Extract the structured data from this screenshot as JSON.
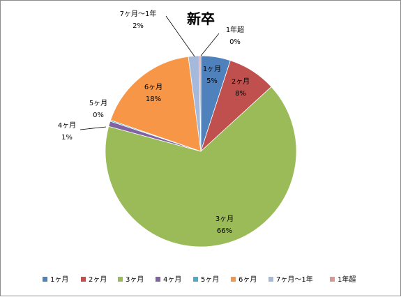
{
  "chart_data": {
    "type": "pie",
    "title": "新卒",
    "legend_position": "bottom",
    "slices": [
      {
        "label": "1ヶ月",
        "value": 5,
        "display": "5%",
        "color": "#4F81BD"
      },
      {
        "label": "2ヶ月",
        "value": 8,
        "display": "8%",
        "color": "#C0504D"
      },
      {
        "label": "3ヶ月",
        "value": 66,
        "display": "66%",
        "color": "#9BBB59"
      },
      {
        "label": "4ヶ月",
        "value": 1,
        "display": "1%",
        "color": "#8064A2"
      },
      {
        "label": "5ヶ月",
        "value": 0,
        "display": "0%",
        "color": "#4BACC6"
      },
      {
        "label": "6ヶ月",
        "value": 18,
        "display": "18%",
        "color": "#F79646"
      },
      {
        "label": "7ヶ月～1年",
        "value": 2,
        "display": "2%",
        "color": "#A5B9DC"
      },
      {
        "label": "1年超",
        "value": 0,
        "display": "0%",
        "color": "#D99694"
      }
    ]
  }
}
